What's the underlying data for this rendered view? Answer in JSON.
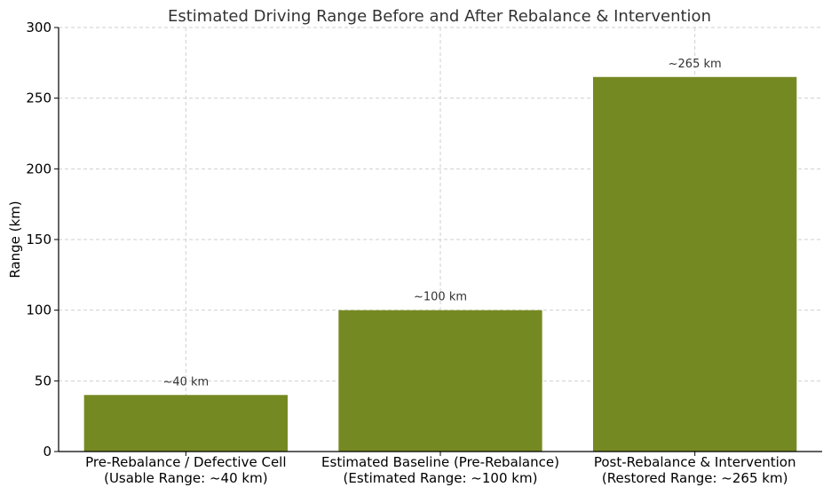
{
  "chart_data": {
    "type": "bar",
    "title": "Estimated Driving Range Before and After Rebalance & Intervention",
    "xlabel": "",
    "ylabel": "Range (km)",
    "ylim": [
      0,
      300
    ],
    "yticks": [
      0,
      50,
      100,
      150,
      200,
      250,
      300
    ],
    "grid": true,
    "bar_color": "#758922",
    "categories": [
      [
        "Pre-Rebalance / Defective Cell",
        "(Usable Range: ~40 km)"
      ],
      [
        "Estimated Baseline (Pre-Rebalance)",
        "(Estimated Range: ~100 km)"
      ],
      [
        "Post-Rebalance & Intervention",
        "(Restored Range: ~265 km)"
      ]
    ],
    "values": [
      40,
      100,
      265
    ],
    "data_labels": [
      "~40 km",
      "~100 km",
      "~265 km"
    ]
  }
}
